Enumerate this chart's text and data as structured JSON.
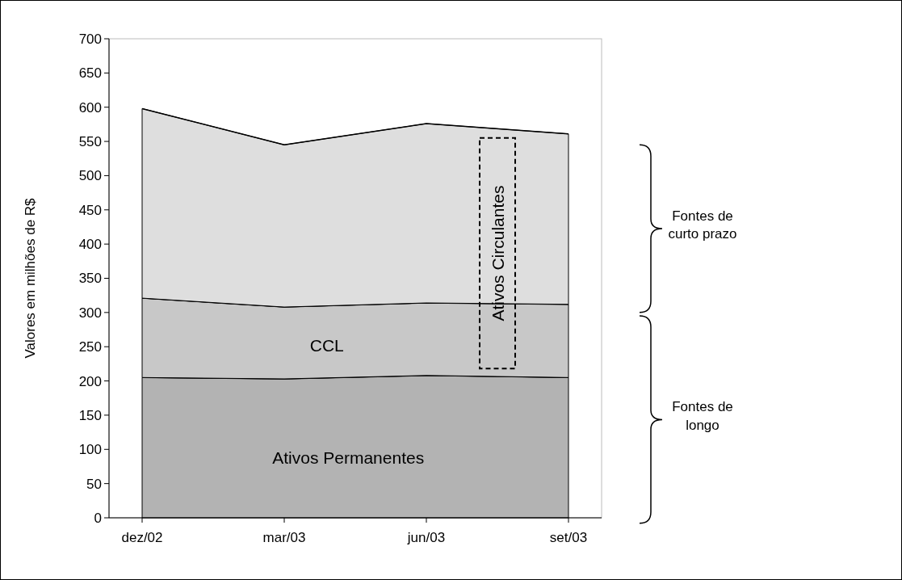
{
  "chart_data": {
    "type": "area",
    "stacked": true,
    "ylabel": "Valores em milhões de R$",
    "categories": [
      "dez/02",
      "mar/03",
      "jun/03",
      "set/03"
    ],
    "series": [
      {
        "name": "Ativos Permanentes",
        "color": "#b3b3b3",
        "values": [
          205,
          203,
          208,
          205
        ]
      },
      {
        "name": "CCL",
        "color": "#c8c8c8",
        "values": [
          116,
          105,
          106,
          107
        ]
      },
      {
        "name": "Ativos Circulantes",
        "color": "#dedede",
        "values": [
          277,
          237,
          262,
          249
        ]
      }
    ],
    "ylim": [
      0,
      700
    ],
    "yticks": [
      0,
      50,
      100,
      150,
      200,
      250,
      300,
      350,
      400,
      450,
      500,
      550,
      600,
      650,
      700
    ],
    "annotations": [
      "Fontes de curto prazo",
      "Fontes de longo"
    ]
  }
}
